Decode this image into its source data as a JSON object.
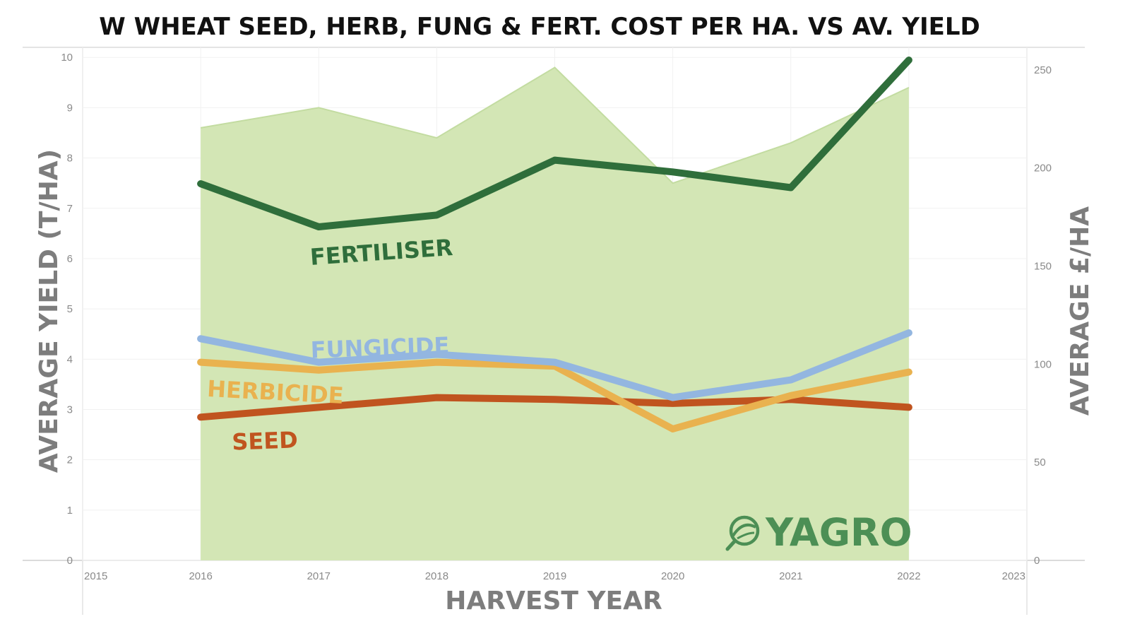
{
  "chart_data": {
    "type": "line",
    "title": "W WHEAT SEED, HERB, FUNG & FERT. COST PER HA. VS AV. YIELD",
    "xlabel": "HARVEST YEAR",
    "ylabel_left": "AVERAGE YIELD (T/HA)",
    "ylabel_right": "AVERAGE  £/HA",
    "x_ticks": [
      "2015",
      "2016",
      "2017",
      "2018",
      "2019",
      "2020",
      "2021",
      "2022",
      "2023"
    ],
    "x_range": [
      2015,
      2023
    ],
    "y_left_ticks": [
      "0",
      "1",
      "2",
      "3",
      "4",
      "5",
      "6",
      "7",
      "8",
      "9",
      "10"
    ],
    "y_left_range": [
      0,
      10.2
    ],
    "y_right_ticks": [
      "0",
      "50",
      "100",
      "150",
      "200",
      "250"
    ],
    "y_right_range": [
      0,
      261.5
    ],
    "x": [
      2016,
      2017,
      2018,
      2019,
      2020,
      2021,
      2022
    ],
    "area": {
      "axis": "left",
      "color": "#d3e6b5",
      "line_color": "#c3dca1",
      "values": [
        8.6,
        9.0,
        8.4,
        9.8,
        7.5,
        8.3,
        9.4
      ]
    },
    "series": [
      {
        "name": "SEED",
        "axis": "right",
        "color": "#c0541f",
        "values": [
          73,
          78,
          83,
          82,
          80,
          82,
          78
        ]
      },
      {
        "name": "HERBICIDE",
        "axis": "right",
        "color": "#e9b24f",
        "values": [
          101,
          97,
          101,
          99,
          67,
          84,
          96
        ]
      },
      {
        "name": "FUNGICIDE",
        "axis": "right",
        "color": "#93b6e0",
        "values": [
          113,
          101,
          105,
          101,
          83,
          92,
          116
        ]
      },
      {
        "name": "FERTILISER",
        "axis": "right",
        "color": "#2f6e3b",
        "values": [
          192,
          170,
          176,
          204,
          198,
          190,
          255
        ]
      }
    ],
    "grid": true
  },
  "logo": {
    "text": "YAGRO",
    "color": "#4c8f55",
    "icon": "leaf-magnifier-icon"
  }
}
